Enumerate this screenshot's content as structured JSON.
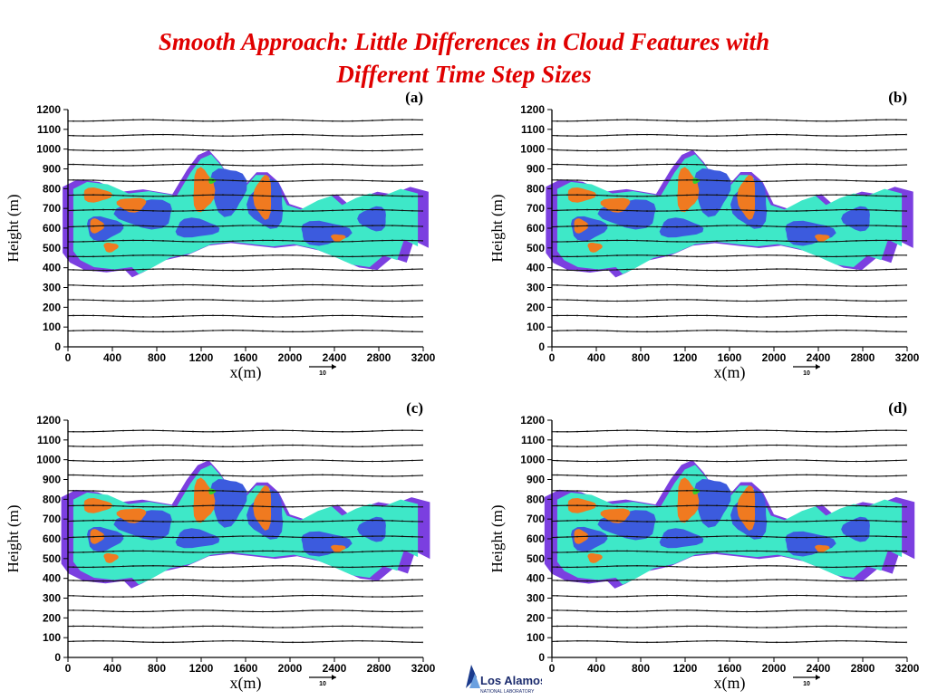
{
  "slide": {
    "title_line1": "Smooth Approach: Little Differences in Cloud Features with",
    "title_line2": "Different Time Step Sizes",
    "title_color": "#e00000"
  },
  "logo": {
    "name": "Los Alamos",
    "subtitle": "NATIONAL LABORATORY"
  },
  "palette": {
    "violet": "#7b3fe0",
    "blue": "#3c5bde",
    "cyan": "#3ee8c8",
    "orange": "#f07a20",
    "green": "#2fd22f"
  },
  "chart_data": [
    {
      "type": "heatmap",
      "panel_label": "(a)",
      "xlabel": "x(m)",
      "ylabel": "Height (m)",
      "xlim": [
        0,
        3200
      ],
      "ylim": [
        0,
        1200
      ],
      "x_ticks": [
        0,
        400,
        800,
        1200,
        1600,
        2000,
        2400,
        2800,
        3200
      ],
      "y_ticks": [
        0,
        100,
        200,
        300,
        400,
        500,
        600,
        700,
        800,
        900,
        1000,
        1100,
        1200
      ],
      "vector_scale_label": "10",
      "wind_vector_rows_height_m": [
        80,
        155,
        235,
        310,
        390,
        460,
        535,
        610,
        690,
        765,
        840,
        920,
        995,
        1070,
        1145
      ]
    },
    {
      "type": "heatmap",
      "panel_label": "(b)",
      "xlabel": "x(m)",
      "ylabel": "Height (m)",
      "xlim": [
        0,
        3200
      ],
      "ylim": [
        0,
        1200
      ],
      "x_ticks": [
        0,
        400,
        800,
        1200,
        1600,
        2000,
        2400,
        2800,
        3200
      ],
      "y_ticks": [
        0,
        100,
        200,
        300,
        400,
        500,
        600,
        700,
        800,
        900,
        1000,
        1100,
        1200
      ],
      "vector_scale_label": "10",
      "wind_vector_rows_height_m": [
        80,
        155,
        235,
        310,
        390,
        460,
        535,
        610,
        690,
        765,
        840,
        920,
        995,
        1070,
        1145
      ]
    },
    {
      "type": "heatmap",
      "panel_label": "(c)",
      "xlabel": "x(m)",
      "ylabel": "Height (m)",
      "xlim": [
        0,
        3200
      ],
      "ylim": [
        0,
        1200
      ],
      "x_ticks": [
        0,
        400,
        800,
        1200,
        1600,
        2000,
        2400,
        2800,
        3200
      ],
      "y_ticks": [
        0,
        100,
        200,
        300,
        400,
        500,
        600,
        700,
        800,
        900,
        1000,
        1100,
        1200
      ],
      "vector_scale_label": "10",
      "wind_vector_rows_height_m": [
        80,
        155,
        235,
        310,
        390,
        460,
        535,
        610,
        690,
        765,
        840,
        920,
        995,
        1070,
        1145
      ]
    },
    {
      "type": "heatmap",
      "panel_label": "(d)",
      "xlabel": "x(m)",
      "ylabel": "Height (m)",
      "xlim": [
        0,
        3200
      ],
      "ylim": [
        0,
        1200
      ],
      "x_ticks": [
        0,
        400,
        800,
        1200,
        1600,
        2000,
        2400,
        2800,
        3200
      ],
      "y_ticks": [
        0,
        100,
        200,
        300,
        400,
        500,
        600,
        700,
        800,
        900,
        1000,
        1100,
        1200
      ],
      "vector_scale_label": "10",
      "wind_vector_rows_height_m": [
        80,
        155,
        235,
        310,
        390,
        460,
        535,
        610,
        690,
        765,
        840,
        920,
        995,
        1070,
        1145
      ]
    }
  ]
}
